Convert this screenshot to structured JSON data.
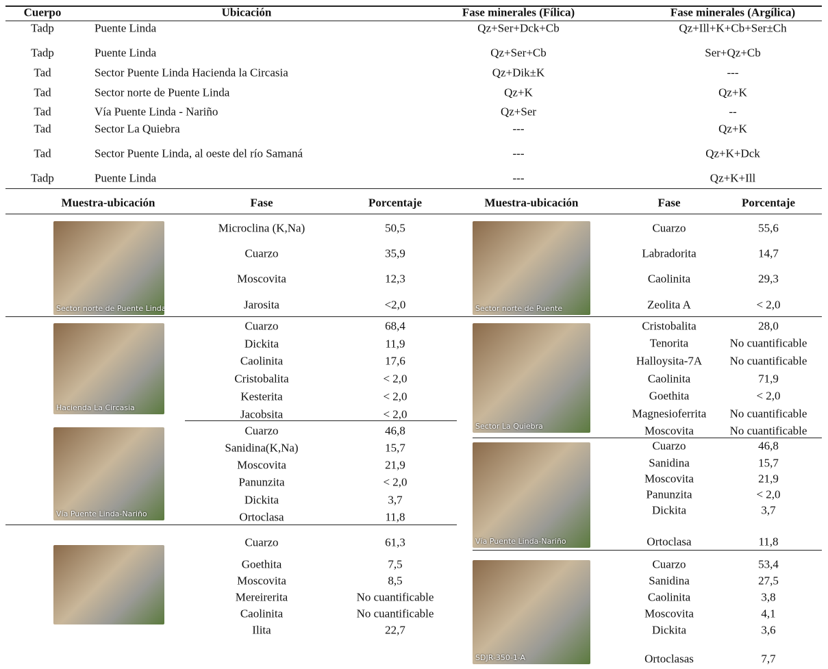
{
  "top_table": {
    "headers": [
      "Cuerpo",
      "Ubicación",
      "Fase minerales (Fílica)",
      "Fase minerales (Argílica)"
    ],
    "rows": [
      [
        "Tadp",
        "Puente Linda",
        "Qz+Ser+Dck+Cb",
        "Qz+Ill+K+Cb+Ser±Ch"
      ],
      [
        "Tadp",
        "Puente Linda",
        "Qz+Ser+Cb",
        "Ser+Qz+Cb"
      ],
      [
        "Tad",
        "Sector Puente Linda Hacienda la Circasia",
        "Qz+Dik±K",
        "---"
      ],
      [
        "Tad",
        "Sector norte de Puente Linda",
        "Qz+K",
        "Qz+K"
      ],
      [
        "Tad",
        "Vía Puente Linda - Nariño",
        "Qz+Ser",
        "--"
      ],
      [
        "Tad",
        "Sector La Quiebra",
        "---",
        "Qz+K"
      ],
      [
        "Tad",
        "Sector Puente Linda, al oeste del río Samaná",
        "---",
        "Qz+K+Dck"
      ],
      [
        "Tadp",
        "Puente Linda",
        "---",
        "Qz+K+Ill"
      ]
    ]
  },
  "samples_table": {
    "headers": [
      "Muestra-ubicación",
      "Fase",
      "Porcentaje",
      "Muestra-ubicación",
      "Fase",
      "Porcentaje"
    ],
    "left": [
      {
        "caption": "Sector norte de Puente Linda",
        "phases": [
          {
            "name": "Microclina (K,Na)",
            "percent": "50,5"
          },
          {
            "name": "Cuarzo",
            "percent": "35,9"
          },
          {
            "name": "Moscovita",
            "percent": "12,3"
          },
          {
            "name": "Jarosita",
            "percent": "<2,0"
          }
        ]
      },
      {
        "caption": "Hacienda La Circasia",
        "phases": [
          {
            "name": "Cuarzo",
            "percent": "68,4"
          },
          {
            "name": "Dickita",
            "percent": "11,9"
          },
          {
            "name": "Caolinita",
            "percent": "17,6"
          },
          {
            "name": "Cristobalita",
            "percent": "< 2,0"
          },
          {
            "name": "Kesterita",
            "percent": "< 2,0"
          },
          {
            "name": "Jacobsita",
            "percent": "< 2,0"
          }
        ]
      },
      {
        "caption": "Vía Puente Linda-Nariño",
        "phases": [
          {
            "name": "Cuarzo",
            "percent": "46,8"
          },
          {
            "name": "Sanidina(K,Na)",
            "percent": "15,7"
          },
          {
            "name": "Moscovita",
            "percent": "21,9"
          },
          {
            "name": "Panunzita",
            "percent": "< 2,0"
          },
          {
            "name": "Dickita",
            "percent": "3,7"
          },
          {
            "name": "Ortoclasa",
            "percent": "11,8"
          }
        ]
      },
      {
        "phases": [
          {
            "name": "Cuarzo",
            "percent": "61,3"
          },
          {
            "name": "Goethita",
            "percent": "7,5"
          },
          {
            "name": "Moscovita",
            "percent": "8,5"
          },
          {
            "name": "Mereirerita",
            "percent": "No cuantificable"
          },
          {
            "name": "Caolinita",
            "percent": "No cuantificable"
          },
          {
            "name": "Ilita",
            "percent": "22,7"
          }
        ]
      }
    ],
    "right": [
      {
        "caption": "Sector norte de Puente",
        "phases": [
          {
            "name": "Cuarzo",
            "percent": "55,6"
          },
          {
            "name": "Labradorita",
            "percent": "14,7"
          },
          {
            "name": "Caolinita",
            "percent": "29,3"
          },
          {
            "name": "Zeolita A",
            "percent": "< 2,0"
          }
        ]
      },
      {
        "caption": "Sector La Quiebra",
        "phases": [
          {
            "name": "Cristobalita",
            "percent": "28,0"
          },
          {
            "name": "Tenorita",
            "percent": "No cuantificable"
          },
          {
            "name": "Halloysita-7A",
            "percent": "No cuantificable"
          },
          {
            "name": "Caolinita",
            "percent": "71,9"
          },
          {
            "name": "Goethita",
            "percent": "< 2,0"
          },
          {
            "name": "Magnesioferrita",
            "percent": "No cuantificable"
          },
          {
            "name": "Moscovita",
            "percent": "No cuantificable"
          }
        ]
      },
      {
        "caption": "Vía Puente Linda-Nariño",
        "phases": [
          {
            "name": "Cuarzo",
            "percent": "46,8"
          },
          {
            "name": "Sanidina",
            "percent": "15,7"
          },
          {
            "name": "Moscovita",
            "percent": "21,9"
          },
          {
            "name": "Panunzita",
            "percent": "< 2,0"
          },
          {
            "name": "Dickita",
            "percent": "3,7"
          },
          {
            "name": "Ortoclasa",
            "percent": "11,8"
          }
        ]
      },
      {
        "caption": "SDJR-350-1-A",
        "phases": [
          {
            "name": "Cuarzo",
            "percent": "53,4"
          },
          {
            "name": "Sanidina",
            "percent": "27,5"
          },
          {
            "name": "Caolinita",
            "percent": "3,8"
          },
          {
            "name": "Moscovita",
            "percent": "4,1"
          },
          {
            "name": "Dickita",
            "percent": "3,6"
          },
          {
            "name": "Ortoclasas",
            "percent": "7,7"
          }
        ]
      }
    ]
  }
}
